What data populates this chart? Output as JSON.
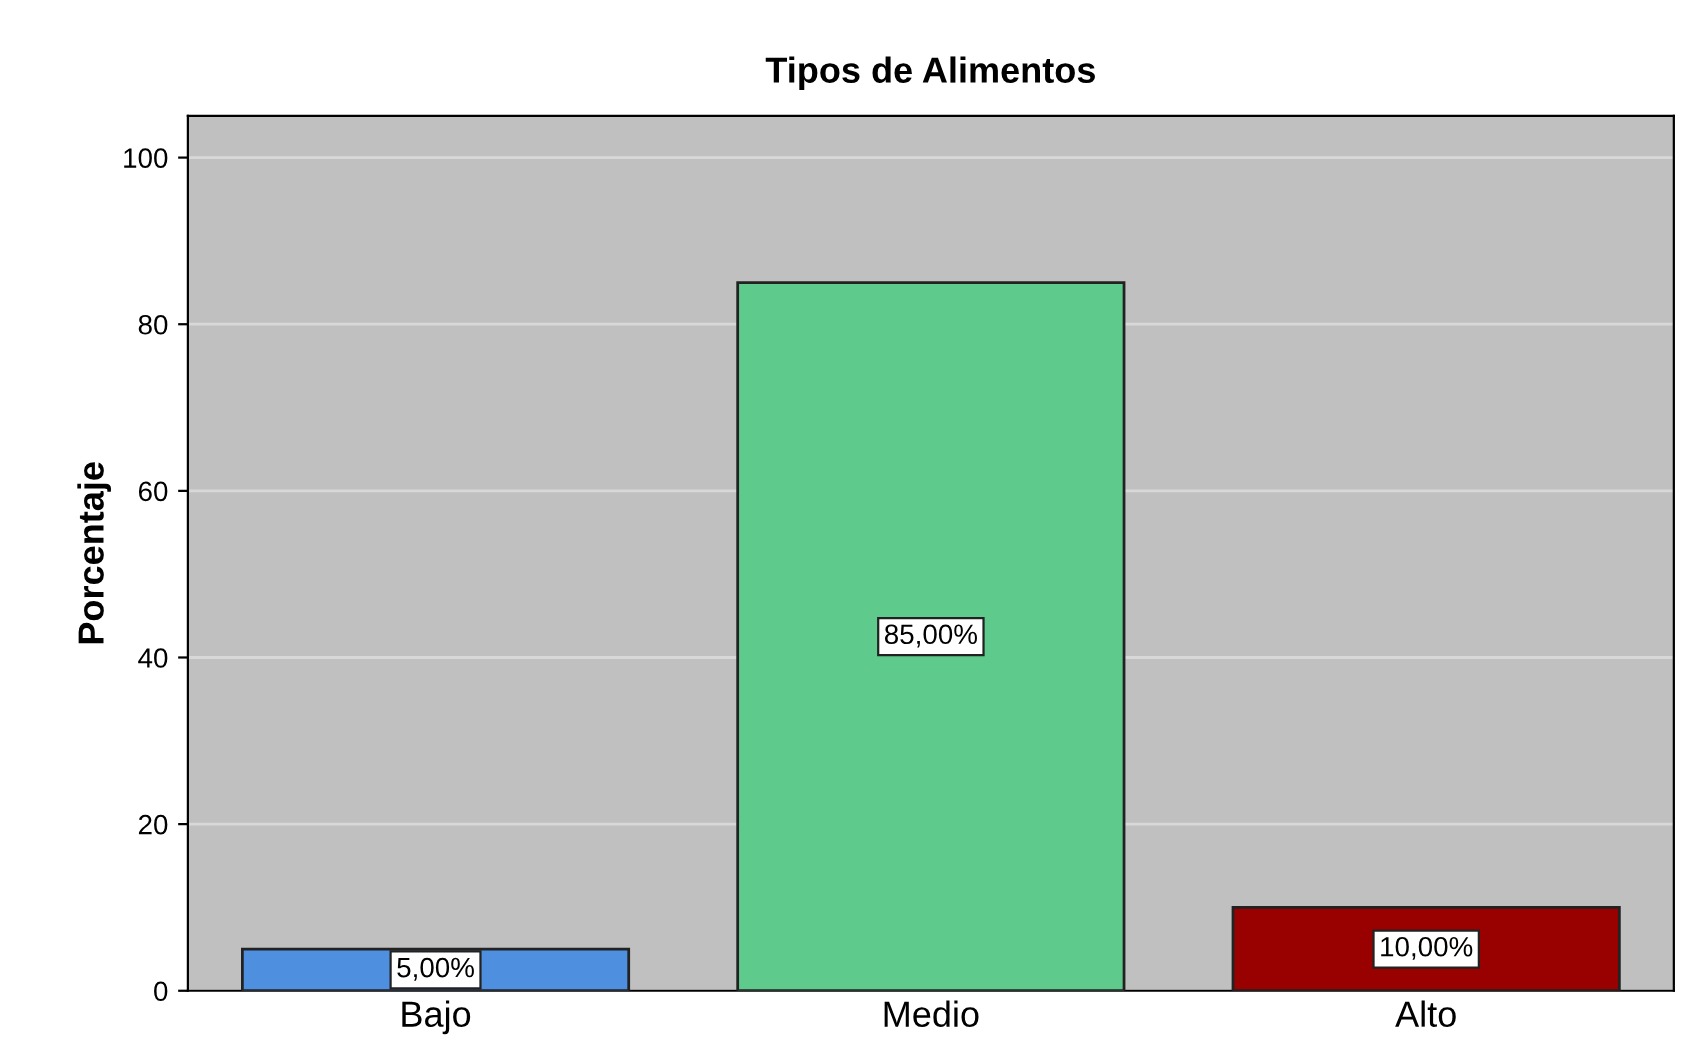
{
  "chart_data": {
    "type": "bar",
    "title": "Tipos de Alimentos",
    "ylabel": "Porcentaje",
    "categories": [
      "Bajo",
      "Medio",
      "Alto"
    ],
    "values": [
      5,
      85,
      10
    ],
    "colors": [
      "#4f8fe0",
      "#5ecb8d",
      "#990000"
    ],
    "value_labels": [
      "5,00%",
      "85,00%",
      "10,00%"
    ],
    "ylim": [
      0,
      105
    ],
    "yticks": [
      0,
      20,
      40,
      60,
      80,
      100
    ],
    "grid": "y"
  }
}
